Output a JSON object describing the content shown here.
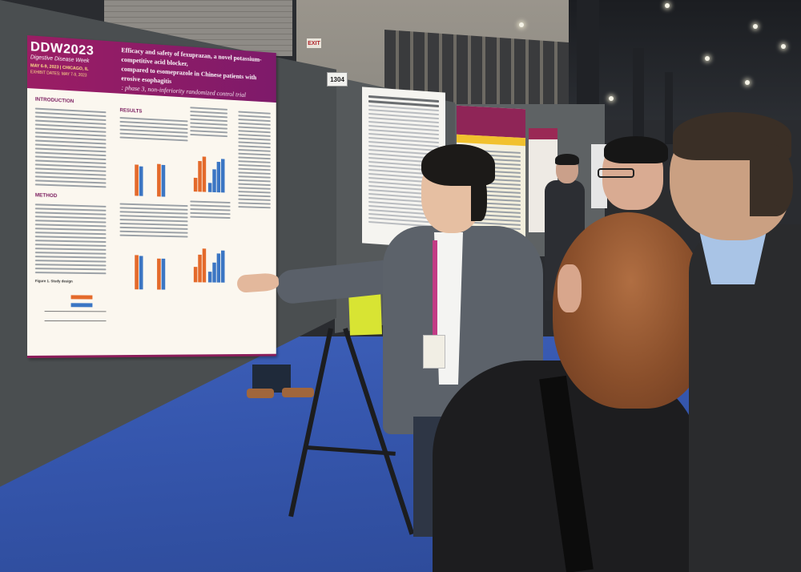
{
  "poster": {
    "logo": "DDW2023",
    "logo_subtitle": "Digestive Disease Week",
    "dates": "MAY 6-9, 2023 | CHICAGO, IL",
    "exhibit_dates": "EXHIBIT DATES: MAY 7-9, 2023",
    "title_line1": "Efficacy and safety of fexuprazan, a novel potassium-competitive acid blocker,",
    "title_line2": "compared to esomeprazole in Chinese patients with erosive esophagitis",
    "title_line3": ": phase 3, non-inferiority randomized control trial",
    "sections": {
      "introduction": "INTRODUCTION",
      "results": "RESULTS",
      "method": "METHOD"
    },
    "figure_caption": "Figure 1. Study design",
    "colors": {
      "header": "#8c1d64",
      "bar_orange": "#e46a2b",
      "bar_blue": "#3b76c4"
    }
  },
  "board_number": "1304",
  "exit_sign": "EXIT",
  "scene": {
    "icons": [
      "poster-board",
      "easel",
      "ceiling-light",
      "presenter",
      "attendee"
    ]
  }
}
